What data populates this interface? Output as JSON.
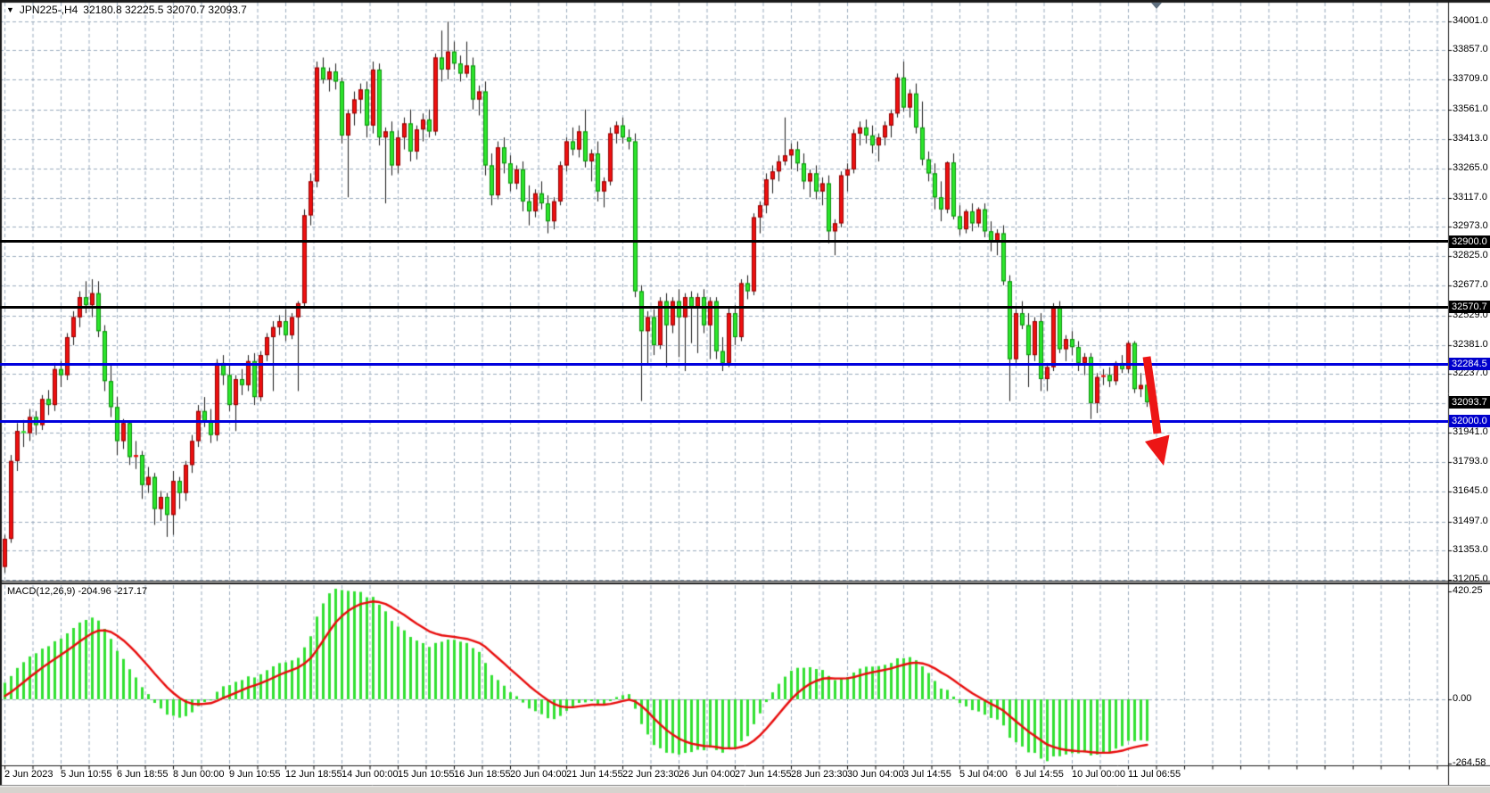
{
  "window": {
    "dropdown_glyph": "▼",
    "symbol_period": "JPN225-,H4",
    "ohlc": "32180.8 32225.5 32070.7 32093.7"
  },
  "colors": {
    "background": "#ffffff",
    "grid": "#9aabbe",
    "bull": "#ef1010",
    "bull_border": "#8f0000",
    "bear": "#2ce62c",
    "bear_border": "#0a8f0a",
    "wick": "#1a1a1a",
    "level_black": "#000000",
    "level_blue": "#0000dd",
    "badge_black": "#000000",
    "badge_blue": "#0000cc",
    "macd_hist": "#33e133",
    "macd_signal": "#e80c0c",
    "arrow": "#ed1515",
    "axis_text": "#000000",
    "border": "#1a1a1a"
  },
  "chart_data": {
    "type": "candlestick",
    "symbol": "JPN225-",
    "timeframe": "H4",
    "title": "JPN225-,H4 32180.8 32225.5 32070.7 32093.7",
    "grid": "on",
    "price_axis": {
      "ylim": [
        31205.0,
        34001.0
      ],
      "tick_labels": [
        "34001.0",
        "33857.0",
        "33709.0",
        "33561.0",
        "33413.0",
        "33265.0",
        "33117.0",
        "32973.0",
        "32825.0",
        "32677.0",
        "32529.0",
        "32381.0",
        "32237.0",
        "31941.0",
        "31793.0",
        "31645.0",
        "31497.0",
        "31353.0",
        "31205.0"
      ],
      "hidden_gridlines": [
        32089.0
      ]
    },
    "time_axis": {
      "tick_labels": [
        "2 Jun 2023",
        "5 Jun 10:55",
        "6 Jun 18:55",
        "8 Jun 00:00",
        "9 Jun 10:55",
        "12 Jun 18:55",
        "14 Jun 00:00",
        "15 Jun 10:55",
        "16 Jun 18:55",
        "20 Jun 04:00",
        "21 Jun 14:55",
        "22 Jun 23:30",
        "26 Jun 04:00",
        "27 Jun 14:55",
        "28 Jun 23:30",
        "30 Jun 04:00",
        "3 Jul 14:55",
        "5 Jul 04:00",
        "6 Jul 14:55",
        "10 Jul 00:00",
        "11 Jul 06:55"
      ]
    },
    "levels": [
      {
        "label": "32900.0",
        "value": 32900.0,
        "line_color": "#000000",
        "badge_color": "#000000"
      },
      {
        "label": "32570.7",
        "value": 32570.7,
        "line_color": "#000000",
        "badge_color": "#000000"
      },
      {
        "label": "32284.5",
        "value": 32284.5,
        "line_color": "#0000dd",
        "badge_color": "#0000cc"
      },
      {
        "label": "32000.0",
        "value": 32000.0,
        "line_color": "#0000dd",
        "badge_color": "#0000cc"
      }
    ],
    "current_price": {
      "label": "32093.7",
      "value": 32093.7
    },
    "macd": {
      "label": "MACD(12,26,9) -204.96 -217.17",
      "params": [
        12,
        26,
        9
      ],
      "macd_value": -204.96,
      "signal_value": -217.17,
      "scale_labels": [
        "420.25",
        "0.00",
        "-264.58"
      ],
      "ylim": [
        -264.58,
        420.25
      ]
    },
    "annotations": [
      {
        "type": "arrow",
        "direction": "down-right",
        "color": "#ed1515",
        "from_price": 32290,
        "to_price": 31800
      }
    ],
    "candles": [
      [
        31270,
        31430,
        31240,
        31410
      ],
      [
        31410,
        31830,
        31390,
        31800
      ],
      [
        31800,
        31990,
        31750,
        31950
      ],
      [
        31950,
        32005,
        31870,
        31940
      ],
      [
        31940,
        32060,
        31900,
        32020
      ],
      [
        32020,
        32050,
        31930,
        31980
      ],
      [
        31980,
        32130,
        31955,
        32110
      ],
      [
        32110,
        32155,
        32030,
        32080
      ],
      [
        32080,
        32290,
        32050,
        32260
      ],
      [
        32260,
        32300,
        32170,
        32230
      ],
      [
        32230,
        32440,
        32205,
        32420
      ],
      [
        32420,
        32550,
        32380,
        32520
      ],
      [
        32520,
        32650,
        32470,
        32620
      ],
      [
        32620,
        32700,
        32540,
        32580
      ],
      [
        32580,
        32710,
        32520,
        32640
      ],
      [
        32640,
        32700,
        32420,
        32450
      ],
      [
        32450,
        32480,
        32150,
        32200
      ],
      [
        32200,
        32280,
        32020,
        32070
      ],
      [
        32070,
        32120,
        31830,
        31900
      ],
      [
        31900,
        32010,
        31860,
        31990
      ],
      [
        31990,
        32000,
        31780,
        31820
      ],
      [
        31820,
        31900,
        31760,
        31830
      ],
      [
        31830,
        31850,
        31610,
        31680
      ],
      [
        31680,
        31770,
        31640,
        31720
      ],
      [
        31720,
        31740,
        31480,
        31560
      ],
      [
        31560,
        31650,
        31500,
        31620
      ],
      [
        31620,
        31640,
        31420,
        31530
      ],
      [
        31530,
        31750,
        31430,
        31700
      ],
      [
        31700,
        31720,
        31560,
        31640
      ],
      [
        31640,
        31800,
        31600,
        31780
      ],
      [
        31780,
        31930,
        31740,
        31900
      ],
      [
        31900,
        32080,
        31870,
        32050
      ],
      [
        32050,
        32120,
        31970,
        32000
      ],
      [
        32000,
        32060,
        31890,
        31930
      ],
      [
        31930,
        32310,
        31900,
        32290
      ],
      [
        32290,
        32330,
        32180,
        32230
      ],
      [
        32230,
        32290,
        32050,
        32080
      ],
      [
        32080,
        32230,
        31950,
        32210
      ],
      [
        32210,
        32260,
        32130,
        32180
      ],
      [
        32180,
        32330,
        32150,
        32300
      ],
      [
        32300,
        32340,
        32080,
        32120
      ],
      [
        32120,
        32350,
        32100,
        32330
      ],
      [
        32330,
        32440,
        32300,
        32420
      ],
      [
        32420,
        32500,
        32150,
        32470
      ],
      [
        32470,
        32530,
        32430,
        32500
      ],
      [
        32500,
        32560,
        32400,
        32430
      ],
      [
        32430,
        32540,
        32410,
        32520
      ],
      [
        32520,
        32600,
        32150,
        32590
      ],
      [
        32590,
        33060,
        32570,
        33030
      ],
      [
        33030,
        33240,
        32980,
        33200
      ],
      [
        33200,
        33800,
        33170,
        33770
      ],
      [
        33770,
        33820,
        33690,
        33710
      ],
      [
        33710,
        33770,
        33650,
        33750
      ],
      [
        33750,
        33790,
        33660,
        33700
      ],
      [
        33700,
        33720,
        33390,
        33430
      ],
      [
        33430,
        33560,
        33120,
        33540
      ],
      [
        33540,
        33650,
        33480,
        33610
      ],
      [
        33610,
        33690,
        33540,
        33660
      ],
      [
        33660,
        33700,
        33420,
        33480
      ],
      [
        33480,
        33800,
        33440,
        33760
      ],
      [
        33760,
        33790,
        33380,
        33420
      ],
      [
        33420,
        33470,
        33090,
        33450
      ],
      [
        33450,
        33500,
        33230,
        33280
      ],
      [
        33280,
        33455,
        33240,
        33420
      ],
      [
        33420,
        33520,
        33360,
        33490
      ],
      [
        33490,
        33560,
        33300,
        33350
      ],
      [
        33350,
        33480,
        33310,
        33460
      ],
      [
        33460,
        33540,
        33400,
        33510
      ],
      [
        33510,
        33560,
        33420,
        33450
      ],
      [
        33450,
        33840,
        33430,
        33820
      ],
      [
        33820,
        33955,
        33700,
        33760
      ],
      [
        33760,
        34000,
        33710,
        33850
      ],
      [
        33850,
        33900,
        33760,
        33790
      ],
      [
        33790,
        33830,
        33700,
        33740
      ],
      [
        33740,
        33900,
        33720,
        33780
      ],
      [
        33780,
        33820,
        33560,
        33610
      ],
      [
        33610,
        33680,
        33530,
        33650
      ],
      [
        33650,
        33700,
        33230,
        33280
      ],
      [
        33280,
        33340,
        33080,
        33130
      ],
      [
        33130,
        33400,
        33110,
        33370
      ],
      [
        33370,
        33420,
        33240,
        33290
      ],
      [
        33290,
        33330,
        33150,
        33190
      ],
      [
        33190,
        33280,
        33160,
        33260
      ],
      [
        33260,
        33300,
        33050,
        33100
      ],
      [
        33100,
        33180,
        32980,
        33050
      ],
      [
        33050,
        33160,
        33020,
        33140
      ],
      [
        33140,
        33200,
        33060,
        33090
      ],
      [
        33090,
        33130,
        32940,
        33000
      ],
      [
        33000,
        33120,
        32960,
        33100
      ],
      [
        33100,
        33300,
        33080,
        33280
      ],
      [
        33280,
        33420,
        33250,
        33400
      ],
      [
        33400,
        33470,
        33330,
        33360
      ],
      [
        33360,
        33480,
        33320,
        33450
      ],
      [
        33450,
        33560,
        33270,
        33300
      ],
      [
        33300,
        33360,
        33200,
        33340
      ],
      [
        33340,
        33400,
        33100,
        33150
      ],
      [
        33150,
        33220,
        33070,
        33200
      ],
      [
        33200,
        33470,
        33180,
        33440
      ],
      [
        33440,
        33500,
        33390,
        33480
      ],
      [
        33480,
        33520,
        33390,
        33420
      ],
      [
        33420,
        33460,
        33360,
        33400
      ],
      [
        33400,
        33440,
        32620,
        32650
      ],
      [
        32650,
        32680,
        32100,
        32450
      ],
      [
        32450,
        32550,
        32280,
        32520
      ],
      [
        32520,
        32560,
        32330,
        32380
      ],
      [
        32380,
        32620,
        32360,
        32600
      ],
      [
        32600,
        32640,
        32270,
        32480
      ],
      [
        32480,
        32620,
        32440,
        32600
      ],
      [
        32600,
        32660,
        32320,
        32520
      ],
      [
        32520,
        32640,
        32250,
        32620
      ],
      [
        32620,
        32650,
        32390,
        32570
      ],
      [
        32570,
        32640,
        32340,
        32620
      ],
      [
        32620,
        32660,
        32440,
        32480
      ],
      [
        32480,
        32620,
        32310,
        32600
      ],
      [
        32600,
        32620,
        32310,
        32350
      ],
      [
        32350,
        32420,
        32250,
        32290
      ],
      [
        32290,
        32570,
        32270,
        32540
      ],
      [
        32540,
        32580,
        32380,
        32420
      ],
      [
        32420,
        32710,
        32400,
        32690
      ],
      [
        32690,
        32730,
        32610,
        32650
      ],
      [
        32650,
        33040,
        32630,
        33020
      ],
      [
        33020,
        33100,
        32940,
        33080
      ],
      [
        33080,
        33240,
        33040,
        33210
      ],
      [
        33210,
        33280,
        33140,
        33250
      ],
      [
        33250,
        33330,
        33200,
        33300
      ],
      [
        33300,
        33520,
        33280,
        33330
      ],
      [
        33330,
        33390,
        33260,
        33360
      ],
      [
        33360,
        33400,
        33250,
        33290
      ],
      [
        33290,
        33340,
        33160,
        33200
      ],
      [
        33200,
        33260,
        33120,
        33240
      ],
      [
        33240,
        33280,
        33110,
        33150
      ],
      [
        33150,
        33220,
        33080,
        33190
      ],
      [
        33190,
        33230,
        32890,
        32950
      ],
      [
        32950,
        33010,
        32830,
        32990
      ],
      [
        32990,
        33250,
        32970,
        33230
      ],
      [
        33230,
        33290,
        33150,
        33260
      ],
      [
        33260,
        33460,
        33240,
        33440
      ],
      [
        33440,
        33500,
        33380,
        33470
      ],
      [
        33470,
        33510,
        33390,
        33430
      ],
      [
        33430,
        33480,
        33340,
        33380
      ],
      [
        33380,
        33440,
        33300,
        33420
      ],
      [
        33420,
        33500,
        33380,
        33480
      ],
      [
        33480,
        33560,
        33420,
        33540
      ],
      [
        33540,
        33740,
        33520,
        33720
      ],
      [
        33720,
        33800,
        33550,
        33570
      ],
      [
        33570,
        33660,
        33520,
        33640
      ],
      [
        33640,
        33690,
        33440,
        33470
      ],
      [
        33470,
        33600,
        33280,
        33310
      ],
      [
        33310,
        33350,
        33200,
        33240
      ],
      [
        33240,
        33290,
        33060,
        33120
      ],
      [
        33120,
        33200,
        33000,
        33060
      ],
      [
        33060,
        33300,
        33040,
        33295
      ],
      [
        33295,
        33340,
        33010,
        33025
      ],
      [
        33025,
        33080,
        32930,
        32960
      ],
      [
        32960,
        33060,
        32940,
        33050
      ],
      [
        33050,
        33090,
        32950,
        32990
      ],
      [
        32990,
        33070,
        32970,
        33060
      ],
      [
        33060,
        33090,
        32920,
        32950
      ],
      [
        32950,
        33000,
        32850,
        32900
      ],
      [
        32900,
        32960,
        32830,
        32940
      ],
      [
        32940,
        32980,
        32680,
        32700
      ],
      [
        32700,
        32730,
        32100,
        32310
      ],
      [
        32310,
        32560,
        32290,
        32540
      ],
      [
        32540,
        32600,
        32460,
        32480
      ],
      [
        32480,
        32540,
        32170,
        32330
      ],
      [
        32330,
        32520,
        32300,
        32500
      ],
      [
        32500,
        32540,
        32150,
        32210
      ],
      [
        32210,
        32290,
        32150,
        32270
      ],
      [
        32270,
        32590,
        32250,
        32570
      ],
      [
        32570,
        32600,
        32340,
        32360
      ],
      [
        32360,
        32430,
        32300,
        32410
      ],
      [
        32410,
        32450,
        32330,
        32370
      ],
      [
        32370,
        32400,
        32250,
        32290
      ],
      [
        32290,
        32340,
        32230,
        32320
      ],
      [
        32320,
        32340,
        32010,
        32090
      ],
      [
        32090,
        32240,
        32040,
        32220
      ],
      [
        32220,
        32260,
        32180,
        32230
      ],
      [
        32230,
        32270,
        32170,
        32200
      ],
      [
        32200,
        32300,
        32180,
        32290
      ],
      [
        32290,
        32330,
        32240,
        32260
      ],
      [
        32260,
        32400,
        32240,
        32390
      ],
      [
        32390,
        32400,
        32140,
        32160
      ],
      [
        32160,
        32240,
        32120,
        32180
      ],
      [
        32180.8,
        32225.5,
        32070.7,
        32093.7
      ]
    ]
  }
}
